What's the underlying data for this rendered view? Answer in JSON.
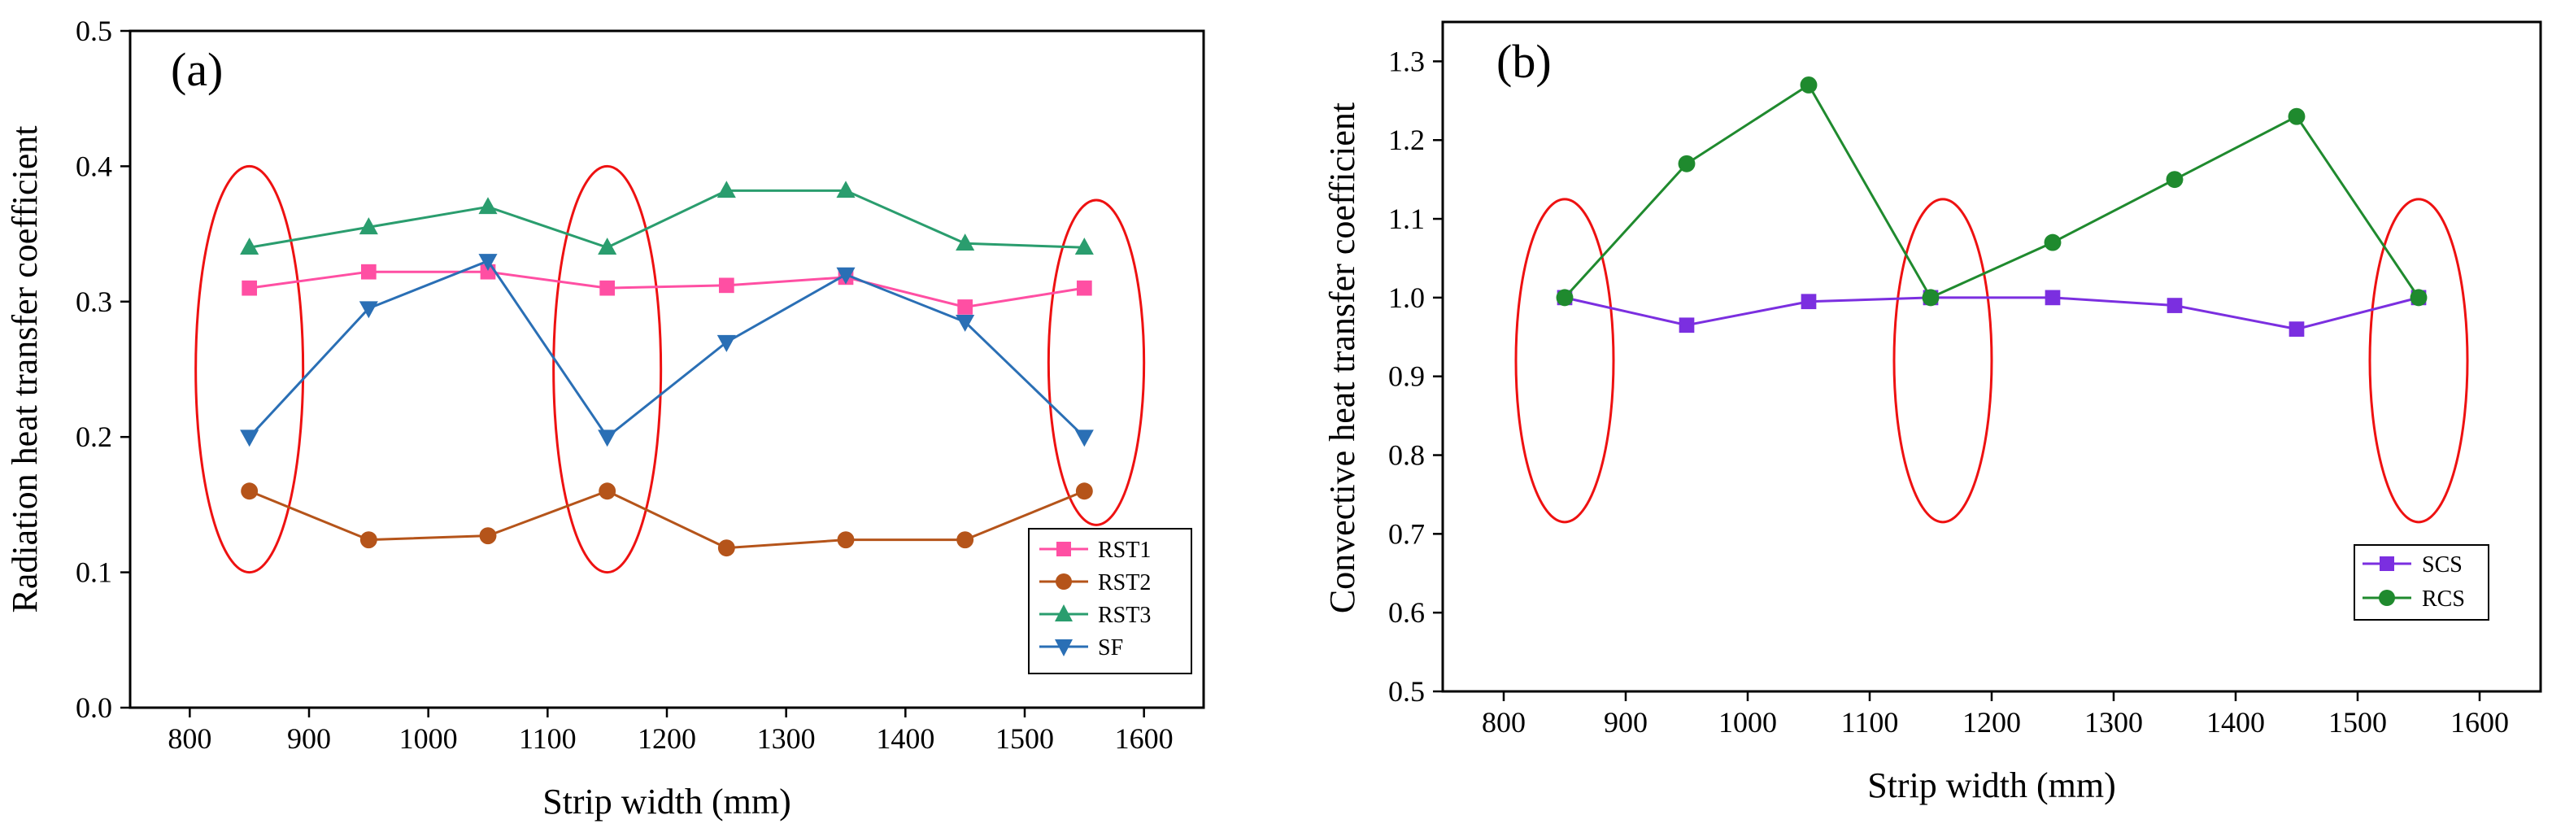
{
  "chart_data": [
    {
      "type": "line",
      "panel_label": "(a)",
      "xlabel": "Strip width (mm)",
      "ylabel": "Radiation heat transfer coefficient",
      "xlim": [
        750,
        1650
      ],
      "ylim": [
        0.0,
        0.5
      ],
      "xticks": [
        800,
        900,
        1000,
        1100,
        1200,
        1300,
        1400,
        1500,
        1600
      ],
      "yticks": [
        0.0,
        0.1,
        0.2,
        0.3,
        0.4,
        0.5
      ],
      "ytick_labels": [
        "0.0",
        "0.1",
        "0.2",
        "0.3",
        "0.4",
        "0.5"
      ],
      "x": [
        850,
        950,
        1050,
        1150,
        1250,
        1350,
        1450,
        1550
      ],
      "series": [
        {
          "name": "RST1",
          "color": "#ff4fa3",
          "marker": "square",
          "values": [
            0.31,
            0.322,
            0.322,
            0.31,
            0.312,
            0.318,
            0.296,
            0.31
          ]
        },
        {
          "name": "RST2",
          "color": "#b5541a",
          "marker": "circle",
          "values": [
            0.16,
            0.124,
            0.127,
            0.16,
            0.118,
            0.124,
            0.124,
            0.16
          ]
        },
        {
          "name": "RST3",
          "color": "#2a9d6e",
          "marker": "triangle-up",
          "values": [
            0.34,
            0.355,
            0.37,
            0.34,
            0.382,
            0.382,
            0.343,
            0.34
          ]
        },
        {
          "name": "SF",
          "color": "#2a6fb5",
          "marker": "triangle-down",
          "values": [
            0.2,
            0.295,
            0.33,
            0.2,
            0.27,
            0.32,
            0.285,
            0.2
          ]
        }
      ],
      "ellipses": [
        {
          "cx": 850,
          "cy": 0.25,
          "rx": 45,
          "ry": 0.15
        },
        {
          "cx": 1150,
          "cy": 0.25,
          "rx": 45,
          "ry": 0.15
        },
        {
          "cx": 1560,
          "cy": 0.255,
          "rx": 40,
          "ry": 0.12
        }
      ],
      "legend_position": "bottom-right"
    },
    {
      "type": "line",
      "panel_label": "(b)",
      "xlabel": "Strip width (mm)",
      "ylabel": "Convective heat transfer coefficient",
      "xlim": [
        750,
        1650
      ],
      "ylim": [
        0.5,
        1.35
      ],
      "xticks": [
        800,
        900,
        1000,
        1100,
        1200,
        1300,
        1400,
        1500,
        1600
      ],
      "yticks": [
        0.5,
        0.6,
        0.7,
        0.8,
        0.9,
        1.0,
        1.1,
        1.2,
        1.3
      ],
      "ytick_labels": [
        "0.5",
        "0.6",
        "0.7",
        "0.8",
        "0.9",
        "1.0",
        "1.1",
        "1.2",
        "1.3"
      ],
      "x": [
        850,
        950,
        1050,
        1150,
        1250,
        1350,
        1450,
        1550
      ],
      "series": [
        {
          "name": "SCS",
          "color": "#7b2fe0",
          "marker": "square",
          "values": [
            1.0,
            0.965,
            0.995,
            1.0,
            1.0,
            0.99,
            0.96,
            1.0
          ]
        },
        {
          "name": "RCS",
          "color": "#1f8a2e",
          "marker": "circle",
          "values": [
            1.0,
            1.17,
            1.27,
            1.0,
            1.07,
            1.15,
            1.23,
            1.0
          ]
        }
      ],
      "ellipses": [
        {
          "cx": 850,
          "cy": 0.92,
          "rx": 40,
          "ry": 0.205
        },
        {
          "cx": 1160,
          "cy": 0.92,
          "rx": 40,
          "ry": 0.205
        },
        {
          "cx": 1550,
          "cy": 0.92,
          "rx": 40,
          "ry": 0.205
        }
      ],
      "ellipse_color": "#ee1111",
      "legend_position": "bottom-right"
    }
  ]
}
